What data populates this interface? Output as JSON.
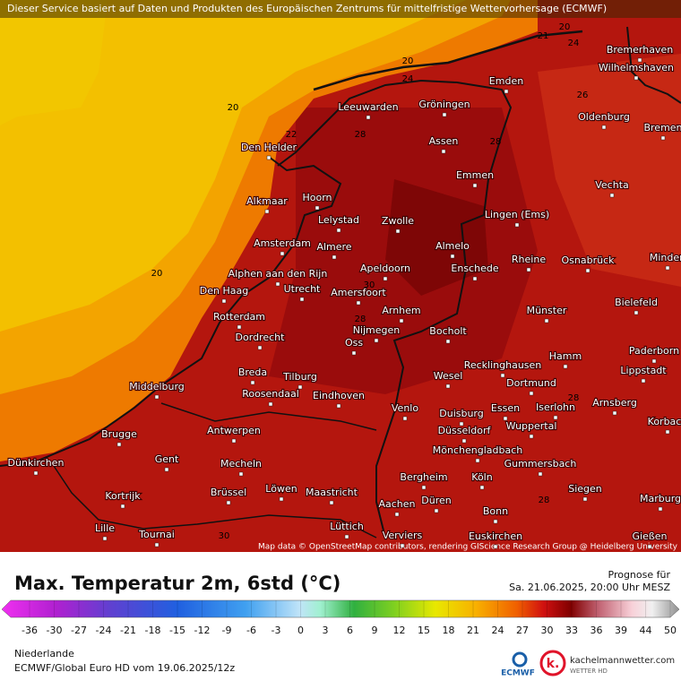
{
  "notice": "Dieser Service basiert auf Daten und Produkten des Europäischen Zentrums für mittelfristige Wettervorhersage (ECMWF)",
  "attribution": "Map data © OpenStreetMap contributors, rendering GIScience Research Group @ Heidelberg University",
  "cities": [
    "Bremerhaven",
    "Wilhelmshaven",
    "Emden",
    "Leeuwarden",
    "Gröningen",
    "Oldenburg",
    "Bremen",
    "Den Helder",
    "Assen",
    "Emmen",
    "Vechta",
    "Alkmaar",
    "Hoorn",
    "Lelystad",
    "Zwolle",
    "Lingen (Ems)",
    "Amsterdam",
    "Almere",
    "Almelo",
    "Rheine",
    "Osnabrück",
    "Minden",
    "Alphen aan den Rijn",
    "Apeldoorn",
    "Enschede",
    "Den Haag",
    "Utrecht",
    "Amersfoort",
    "Bielefeld",
    "Rotterdam",
    "Arnhem",
    "Münster",
    "Dordrecht",
    "Nijmegen",
    "Bocholt",
    "Oss",
    "Paderborn",
    "Hamm",
    "Breda",
    "Tilburg",
    "Recklinghausen",
    "Lippstadt",
    "Middelburg",
    "Roosendaal",
    "Eindhoven",
    "Wesel",
    "Dortmund",
    "Arnsberg",
    "Venlo",
    "Duisburg",
    "Essen",
    "Iserlohn",
    "Korbach",
    "Brugge",
    "Antwerpen",
    "Düsseldorf",
    "Wuppertal",
    "Mönchengladbach",
    "Dünkirchen",
    "Gent",
    "Mecheln",
    "Gummersbach",
    "Bergheim",
    "Köln",
    "Kortrijk",
    "Brüssel",
    "Löwen",
    "Maastricht",
    "Siegen",
    "Marburg",
    "Düren",
    "Aachen",
    "Bonn",
    "Lille",
    "Lüttich",
    "Tournai",
    "Verviers",
    "Euskirchen",
    "Gießen"
  ],
  "contour_labels": [
    20,
    21,
    24,
    20,
    24,
    20,
    22,
    28,
    26,
    28,
    20,
    28,
    30,
    28,
    28,
    28,
    30
  ],
  "legend": {
    "title": "Max. Temperatur 2m, 6std (°C)",
    "forecast_label": "Prognose für",
    "forecast_time": "Sa. 21.06.2025, 20:00 Uhr MESZ",
    "ticks": [
      -36,
      -30,
      -27,
      -24,
      -21,
      -18,
      -15,
      -12,
      -9,
      -6,
      -3,
      0,
      3,
      6,
      9,
      12,
      15,
      18,
      21,
      24,
      27,
      30,
      33,
      36,
      39,
      44,
      50
    ]
  },
  "footer": {
    "region": "Niederlande",
    "model": "ECMWF/Global Euro HD vom  19.06.2025/12z",
    "logo_ecmwf": "ECMWF",
    "logo_site": "kachelmannwetter.com",
    "logo_sub": "WETTER HD"
  }
}
